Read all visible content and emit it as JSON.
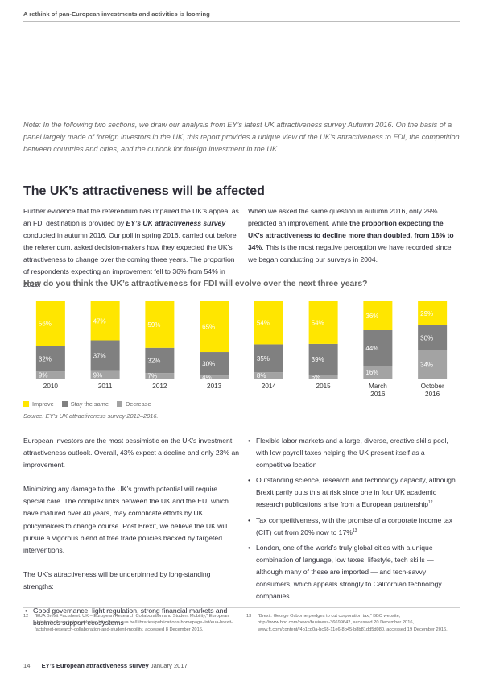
{
  "header": {
    "title": "A rethink of pan-European investments and activities is looming"
  },
  "note": "Note: In the following two sections, we draw our analysis from EY’s latest UK attractiveness survey Autumn 2016. On the basis of a panel largely made of foreign investors in the UK, this report provides a unique view of the UK’s attractiveness to FDI, the competition between countries and cities, and the outlook for foreign investment in the UK.",
  "section": {
    "heading": "The UK’s attractiveness will be affected",
    "left_para": {
      "p1": "Further evidence that the referendum has impaired the UK’s appeal as an FDI destination is provided by ",
      "emph": "EY’s UK attractiveness survey",
      "p2": " conducted in autumn 2016. Our poll in spring 2016, carried out before the referendum, asked decision-makers how they expected the UK’s attractiveness to change over the coming three years. The proportion of respondents expecting an improvement fell to 36% from 54% in 2015."
    },
    "right_para": {
      "p1": "When we asked the same question in autumn 2016, only 29% predicted an improvement, while ",
      "bold": "the proportion expecting the UK’s attractiveness to decline more than doubled, from 16% to 34%",
      "p2": ". This is the most negative perception we have recorded since we began conducting our surveys in 2004."
    }
  },
  "chart_question": "How do you think the UK’s attractiveness for FDI will evolve over the next three years?",
  "chart_data": {
    "type": "bar",
    "stacked": true,
    "normalized": true,
    "categories": [
      "2010",
      "2011",
      "2012",
      "2013",
      "2014",
      "2015",
      "March 2016",
      "October 2016"
    ],
    "series": [
      {
        "name": "Decrease",
        "color": "#a3a3a3",
        "values": [
          9,
          9,
          7,
          4,
          8,
          5,
          16,
          34
        ]
      },
      {
        "name": "Stay the same",
        "color": "#808080",
        "values": [
          32,
          37,
          32,
          30,
          35,
          39,
          44,
          30
        ]
      },
      {
        "name": "Improve",
        "color": "#ffe600",
        "values": [
          56,
          47,
          59,
          65,
          54,
          54,
          36,
          29
        ]
      }
    ],
    "title": "How do you think the UK’s attractiveness for FDI will evolve over the next three years?",
    "legend_position": "bottom-left",
    "category_lines": [
      [
        "2010"
      ],
      [
        "2011"
      ],
      [
        "2012"
      ],
      [
        "2013"
      ],
      [
        "2014"
      ],
      [
        "2015"
      ],
      [
        "March",
        "2016"
      ],
      [
        "October",
        "2016"
      ]
    ]
  },
  "legend": {
    "improve": "Improve",
    "stay": "Stay the same",
    "decrease": "Decrease"
  },
  "colors": {
    "improve": "#ffe600",
    "stay": "#808080",
    "decrease": "#a3a3a3"
  },
  "source": "Source: EY’s UK attractiveness survey 2012–2016.",
  "body_left": {
    "p1": "European investors are the most pessimistic on the UK’s investment attractiveness outlook. Overall, 43% expect a decline and only 23% an improvement.",
    "p2": "Minimizing any damage to the UK’s growth potential will require special care. The complex links between the UK and the EU, which have matured over 40 years, may complicate efforts by UK policymakers to change course. Post Brexit, we believe the UK will pursue a vigorous blend of free trade policies backed by targeted interventions.",
    "p3": "The UK’s attractiveness will be underpinned by long-standing strengths:",
    "bullet1": "Good governance, light regulation, strong financial markets and business support ecosystems"
  },
  "body_right": {
    "b1": "Flexible labor markets and a large, diverse, creative skills pool, with low payroll taxes helping the UK present itself as a competitive location",
    "b2": "Outstanding science, research and technology capacity, although Brexit partly puts this at risk since one in four UK academic research publications arise from a European partnership",
    "b2_sup": "12",
    "b3": "Tax competitiveness, with the promise of a corporate income tax (CIT) cut from 20% now to 17%",
    "b3_sup": "13",
    "b4": "London, one of the world’s truly global cities with a unique combination of language, low taxes, lifestyle, tech skills — although many of these are imported — and tech-savvy consumers, which appeals strongly to Californian technology companies"
  },
  "footnotes": {
    "f12_num": "12",
    "f12": "“EUA Brexit Factsheet: UK – European Research Collaboration and Student Mobility,” European University Association website, http://www.eua.be/Libraries/publications-homepage-list/eua-brexit-factsheet-research-collaboration-and-student-mobility, accessed 8 December 2016.",
    "f13_num": "13",
    "f13": "“Brexit: George Osborne pledges to cut corporation tax,” BBC website, http://www.bbc.com/news/business-36699642, accessed 20 December 2016, www.ft.com/content/f4b1cd0a-bc68-11e6-8b45-b8b81dd5d080, accessed 19 December 2016."
  },
  "footer": {
    "page": "14",
    "title": "EY’s European attractiveness survey",
    "date": "January 2017"
  }
}
